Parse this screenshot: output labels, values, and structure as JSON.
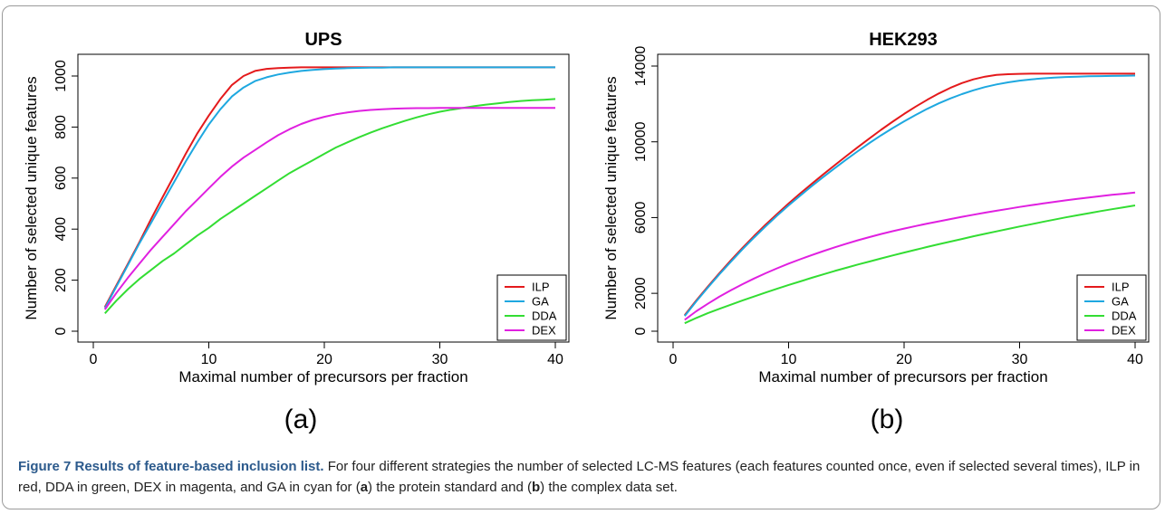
{
  "caption": {
    "lead": "Figure 7 Results of feature-based inclusion list.",
    "parts": [
      " For four different strategies the number of selected LC-MS features (each features counted once, even if selected several times), ILP in red, DDA in green, DEX in magenta, and GA in cyan for (",
      "a",
      ") the protein standard and (",
      "b",
      ") the complex data set."
    ]
  },
  "panel_tags": [
    "(a)",
    "(b)"
  ],
  "chart_data": [
    {
      "type": "line",
      "title": "UPS",
      "xlabel": "Maximal number of precursors per fraction",
      "ylabel": "Number of selected unique features",
      "xlim": [
        0,
        40
      ],
      "ylim": [
        0,
        1000
      ],
      "xticks": [
        0,
        10,
        20,
        30,
        40
      ],
      "yticks": [
        0,
        200,
        400,
        600,
        800,
        1000
      ],
      "grid": false,
      "legend": "bottom-right",
      "series": [
        {
          "name": "ILP",
          "color": "#e41a1c",
          "x": [
            1,
            2,
            3,
            4,
            5,
            6,
            7,
            8,
            9,
            10,
            11,
            12,
            13,
            14,
            15,
            16,
            17,
            18,
            19,
            20,
            21,
            22,
            23,
            24,
            25,
            26,
            27,
            28,
            29,
            30,
            31,
            32,
            33,
            34,
            35,
            36,
            37,
            38,
            39,
            40
          ],
          "y": [
            95,
            180,
            265,
            350,
            440,
            525,
            610,
            695,
            775,
            845,
            910,
            965,
            1000,
            1020,
            1028,
            1031,
            1033,
            1034,
            1034,
            1034,
            1034,
            1034,
            1034,
            1034,
            1034,
            1034,
            1034,
            1034,
            1034,
            1034,
            1034,
            1034,
            1034,
            1034,
            1034,
            1034,
            1034,
            1034,
            1034,
            1034
          ]
        },
        {
          "name": "GA",
          "color": "#1ea8e0",
          "x": [
            1,
            2,
            3,
            4,
            5,
            6,
            7,
            8,
            9,
            10,
            11,
            12,
            13,
            14,
            15,
            16,
            17,
            18,
            19,
            20,
            21,
            22,
            23,
            24,
            25,
            26,
            27,
            28,
            29,
            30,
            31,
            32,
            33,
            34,
            35,
            36,
            37,
            38,
            39,
            40
          ],
          "y": [
            90,
            175,
            260,
            345,
            425,
            505,
            585,
            665,
            740,
            810,
            870,
            920,
            955,
            980,
            995,
            1006,
            1014,
            1020,
            1024,
            1027,
            1029,
            1031,
            1032,
            1033,
            1033,
            1034,
            1034,
            1034,
            1034,
            1034,
            1034,
            1034,
            1034,
            1034,
            1034,
            1034,
            1034,
            1034,
            1034,
            1034
          ]
        },
        {
          "name": "DDA",
          "color": "#33dd33",
          "x": [
            1,
            2,
            3,
            4,
            5,
            6,
            7,
            8,
            9,
            10,
            11,
            12,
            13,
            14,
            15,
            16,
            17,
            18,
            19,
            20,
            21,
            22,
            23,
            24,
            25,
            26,
            27,
            28,
            29,
            30,
            31,
            32,
            33,
            34,
            35,
            36,
            37,
            38,
            39,
            40
          ],
          "y": [
            70,
            120,
            165,
            205,
            240,
            275,
            305,
            340,
            375,
            405,
            440,
            470,
            500,
            530,
            560,
            590,
            620,
            645,
            670,
            695,
            720,
            740,
            760,
            778,
            795,
            810,
            825,
            838,
            850,
            860,
            868,
            875,
            882,
            888,
            893,
            898,
            902,
            905,
            907,
            910
          ]
        },
        {
          "name": "DEX",
          "color": "#e020e0",
          "x": [
            1,
            2,
            3,
            4,
            5,
            6,
            7,
            8,
            9,
            10,
            11,
            12,
            13,
            14,
            15,
            16,
            17,
            18,
            19,
            20,
            21,
            22,
            23,
            24,
            25,
            26,
            27,
            28,
            29,
            30,
            31,
            32,
            33,
            34,
            35,
            36,
            37,
            38,
            39,
            40
          ],
          "y": [
            85,
            150,
            210,
            265,
            320,
            370,
            420,
            470,
            515,
            560,
            605,
            645,
            680,
            710,
            740,
            768,
            792,
            812,
            828,
            840,
            850,
            857,
            863,
            867,
            870,
            872,
            873,
            874,
            874,
            875,
            875,
            875,
            875,
            875,
            875,
            875,
            875,
            875,
            875,
            875
          ]
        }
      ]
    },
    {
      "type": "line",
      "title": "HEK293",
      "xlabel": "Maximal number of precursors per fraction",
      "ylabel": "Number of selected unique features",
      "xlim": [
        0,
        40
      ],
      "ylim": [
        0,
        14000
      ],
      "xticks": [
        0,
        10,
        20,
        30,
        40
      ],
      "yticks": [
        0,
        2000,
        6000,
        10000,
        14000
      ],
      "grid": false,
      "legend": "bottom-right",
      "series": [
        {
          "name": "ILP",
          "color": "#e41a1c",
          "x": [
            1,
            2,
            3,
            4,
            5,
            6,
            7,
            8,
            9,
            10,
            11,
            12,
            13,
            14,
            15,
            16,
            17,
            18,
            19,
            20,
            21,
            22,
            23,
            24,
            25,
            26,
            27,
            28,
            29,
            30,
            31,
            32,
            33,
            34,
            35,
            36,
            37,
            38,
            39,
            40
          ],
          "y": [
            850,
            1620,
            2350,
            3060,
            3740,
            4390,
            5020,
            5620,
            6190,
            6740,
            7270,
            7780,
            8280,
            8770,
            9250,
            9720,
            10180,
            10630,
            11060,
            11470,
            11860,
            12220,
            12550,
            12850,
            13100,
            13300,
            13440,
            13530,
            13570,
            13590,
            13600,
            13600,
            13600,
            13600,
            13600,
            13600,
            13600,
            13600,
            13600,
            13600
          ]
        },
        {
          "name": "GA",
          "color": "#1ea8e0",
          "x": [
            1,
            2,
            3,
            4,
            5,
            6,
            7,
            8,
            9,
            10,
            11,
            12,
            13,
            14,
            15,
            16,
            17,
            18,
            19,
            20,
            21,
            22,
            23,
            24,
            25,
            26,
            27,
            28,
            29,
            30,
            31,
            32,
            33,
            34,
            35,
            36,
            37,
            38,
            39,
            40
          ],
          "y": [
            800,
            1570,
            2300,
            3000,
            3670,
            4320,
            4940,
            5530,
            6100,
            6640,
            7160,
            7660,
            8140,
            8610,
            9070,
            9510,
            9940,
            10340,
            10720,
            11080,
            11420,
            11740,
            12030,
            12290,
            12520,
            12720,
            12890,
            13030,
            13140,
            13230,
            13300,
            13350,
            13390,
            13420,
            13440,
            13460,
            13470,
            13480,
            13490,
            13500
          ]
        },
        {
          "name": "DDA",
          "color": "#33dd33",
          "x": [
            1,
            2,
            3,
            4,
            5,
            6,
            7,
            8,
            9,
            10,
            11,
            12,
            13,
            14,
            15,
            16,
            17,
            18,
            19,
            20,
            21,
            22,
            23,
            24,
            25,
            26,
            27,
            28,
            29,
            30,
            31,
            32,
            33,
            34,
            35,
            36,
            37,
            38,
            39,
            40
          ],
          "y": [
            420,
            700,
            950,
            1180,
            1400,
            1620,
            1830,
            2040,
            2240,
            2440,
            2630,
            2820,
            3000,
            3180,
            3350,
            3520,
            3680,
            3840,
            4000,
            4150,
            4300,
            4450,
            4590,
            4730,
            4870,
            5010,
            5140,
            5270,
            5400,
            5530,
            5650,
            5770,
            5890,
            6010,
            6120,
            6230,
            6340,
            6440,
            6540,
            6640
          ]
        },
        {
          "name": "DEX",
          "color": "#e020e0",
          "x": [
            1,
            2,
            3,
            4,
            5,
            6,
            7,
            8,
            9,
            10,
            11,
            12,
            13,
            14,
            15,
            16,
            17,
            18,
            19,
            20,
            21,
            22,
            23,
            24,
            25,
            26,
            27,
            28,
            29,
            30,
            31,
            32,
            33,
            34,
            35,
            36,
            37,
            38,
            39,
            40
          ],
          "y": [
            600,
            1050,
            1450,
            1820,
            2160,
            2480,
            2780,
            3060,
            3320,
            3570,
            3800,
            4020,
            4230,
            4430,
            4620,
            4800,
            4970,
            5130,
            5280,
            5420,
            5550,
            5680,
            5800,
            5920,
            6040,
            6150,
            6260,
            6360,
            6460,
            6560,
            6650,
            6740,
            6830,
            6910,
            6990,
            7060,
            7130,
            7200,
            7260,
            7320
          ]
        }
      ]
    }
  ]
}
